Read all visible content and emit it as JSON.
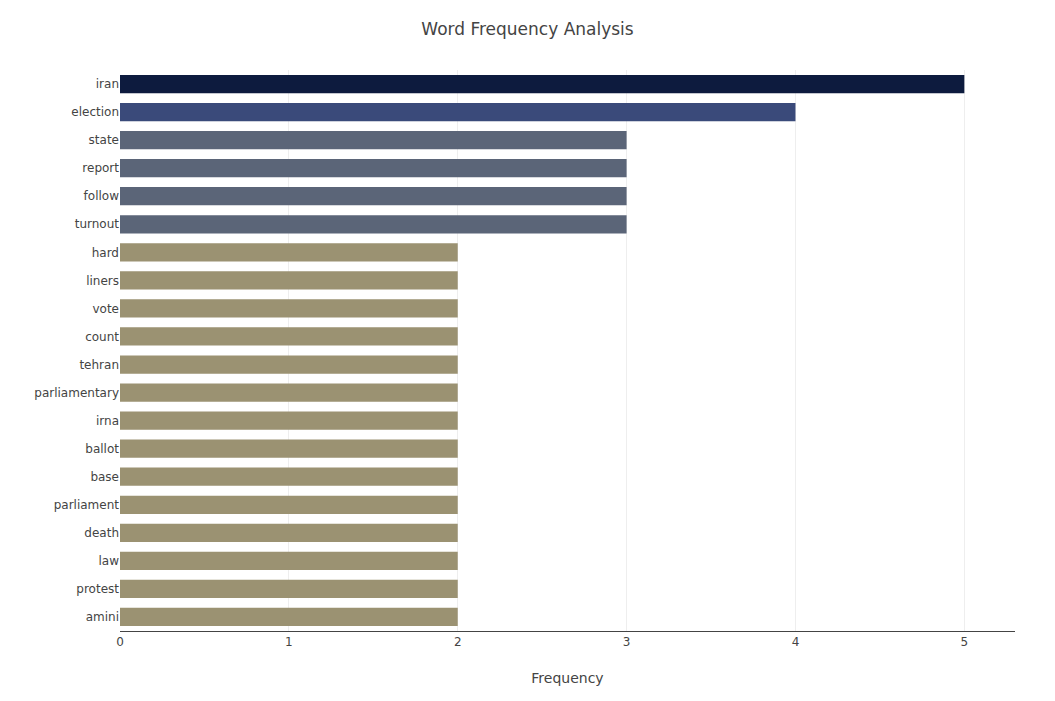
{
  "chart_data": {
    "type": "bar",
    "orientation": "horizontal",
    "title": "Word Frequency Analysis",
    "xlabel": "Frequency",
    "categories": [
      "iran",
      "election",
      "state",
      "report",
      "follow",
      "turnout",
      "hard",
      "liners",
      "vote",
      "count",
      "tehran",
      "parliamentary",
      "irna",
      "ballot",
      "base",
      "parliament",
      "death",
      "law",
      "protest",
      "amini"
    ],
    "values": [
      5,
      4,
      3,
      3,
      3,
      3,
      2,
      2,
      2,
      2,
      2,
      2,
      2,
      2,
      2,
      2,
      2,
      2,
      2,
      2
    ],
    "colors": [
      "#0d1b3e",
      "#3a4a7a",
      "#5b6578",
      "#5b6578",
      "#5b6578",
      "#5b6578",
      "#9b9272",
      "#9b9272",
      "#9b9272",
      "#9b9272",
      "#9b9272",
      "#9b9272",
      "#9b9272",
      "#9b9272",
      "#9b9272",
      "#9b9272",
      "#9b9272",
      "#9b9272",
      "#9b9272",
      "#9b9272"
    ],
    "xlim": [
      0,
      5.3
    ],
    "xticks": [
      0,
      1,
      2,
      3,
      4,
      5
    ],
    "grid": true
  }
}
